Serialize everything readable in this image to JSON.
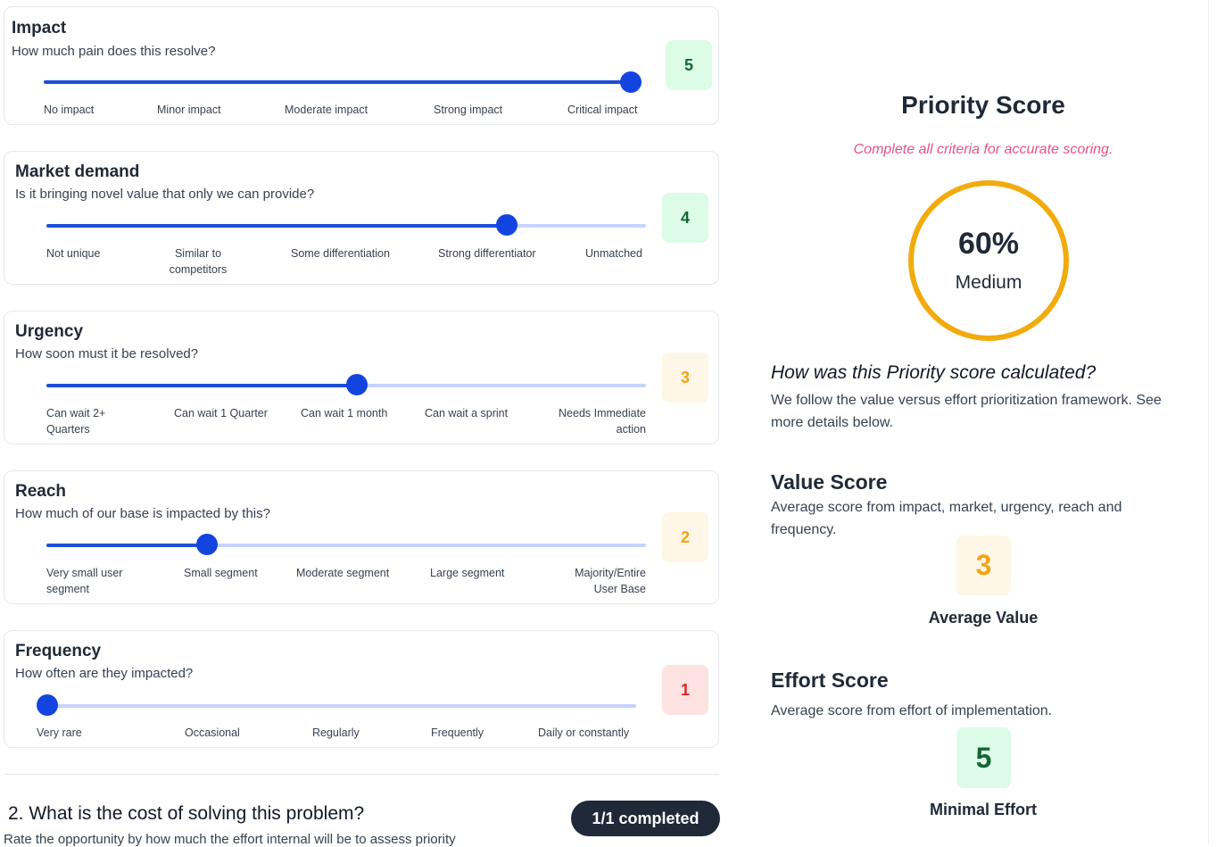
{
  "criteria": [
    {
      "title": "Impact",
      "question": "How much pain does this resolve?",
      "value": 5,
      "value_label": "5",
      "level_fraction": 1.0,
      "ticks": [
        "No impact",
        "Minor impact",
        "Moderate impact",
        "Strong impact",
        "Critical impact"
      ]
    },
    {
      "title": "Market demand",
      "question": "Is it bringing novel value that only we can provide?",
      "value": 4,
      "value_label": "4",
      "level_fraction": 0.75,
      "ticks": [
        "Not unique",
        "Similar to competitors",
        "Some differentiation",
        "Strong differentiator",
        "Unmatched"
      ]
    },
    {
      "title": "Urgency",
      "question": "How soon must it be resolved?",
      "value": 3,
      "value_label": "3",
      "level_fraction": 0.5,
      "ticks": [
        "Can wait 2+ Quarters",
        "Can wait 1 Quarter",
        "Can wait 1 month",
        "Can wait a sprint",
        "Needs Immediate action"
      ]
    },
    {
      "title": "Reach",
      "question": "How much of our base is impacted by this?",
      "value": 2,
      "value_label": "2",
      "level_fraction": 0.25,
      "ticks": [
        "Very small user segment",
        "Small segment",
        "Moderate segment",
        "Large segment",
        "Majority/Entire User Base"
      ]
    },
    {
      "title": "Frequency",
      "question": "How often are they impacted?",
      "value": 1,
      "value_label": "1",
      "level_fraction": 0.0,
      "ticks": [
        "Very rare",
        "Occasional",
        "Regularly",
        "Frequently",
        "Daily or constantly"
      ]
    }
  ],
  "cost_section": {
    "heading": "2. What is the cost of solving this problem?",
    "subtitle": "Rate the opportunity by how much the effort internal will be to assess priority",
    "completed_badge": "1/1 completed"
  },
  "priority": {
    "title": "Priority Score",
    "warning": "Complete all criteria for accurate scoring.",
    "percent": "60%",
    "percent_value": 0.6,
    "level": "Medium",
    "how_title": "How was this Priority score calculated?",
    "how_text": "We follow the value versus effort prioritization framework. See more details below.",
    "value_title": "Value Score",
    "value_desc": "Average score from impact, market, urgency, reach and frequency.",
    "value_score": "3",
    "value_caption": "Average Value",
    "effort_title": "Effort Score",
    "effort_desc": "Average score from effort of implementation.",
    "effort_score": "5",
    "effort_caption": "Minimal Effort"
  },
  "colors": {
    "slider_fill": "#1d4ed8",
    "slider_track": "#c7d2fe",
    "score_high_bg": "#dcfce7",
    "score_high_fg": "#166534",
    "score_mid_bg": "#fef6e6",
    "score_mid_fg": "#f4a410",
    "score_low_bg": "#fde2e2",
    "score_low_fg": "#dc2626",
    "ring": "#f2ab0d",
    "warning": "#e5528a"
  }
}
